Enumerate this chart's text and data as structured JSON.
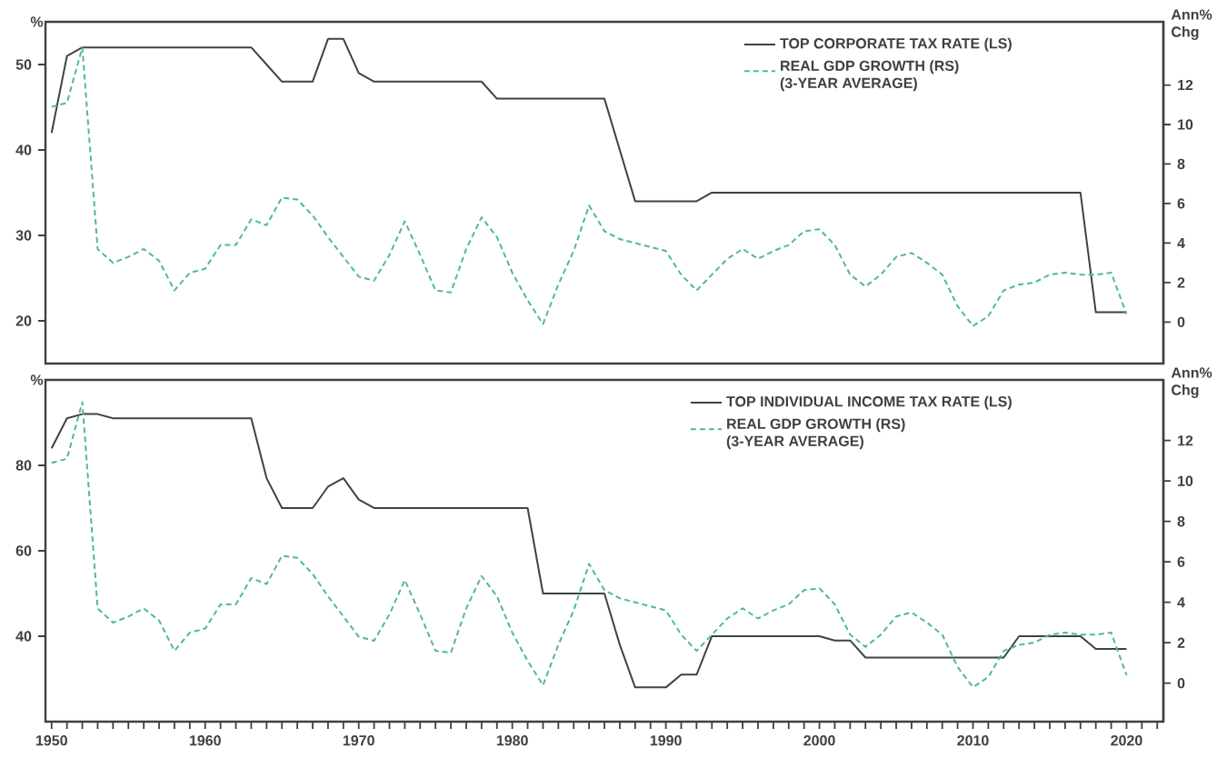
{
  "chart_data": [
    {
      "type": "line",
      "ylabel": "%",
      "y2label": "Ann% Chg",
      "legend": "top right",
      "tick_labels": "y",
      "x": [
        1950,
        1951,
        1952,
        1953,
        1954,
        1955,
        1956,
        1957,
        1958,
        1959,
        1960,
        1961,
        1962,
        1963,
        1964,
        1965,
        1966,
        1967,
        1968,
        1969,
        1970,
        1971,
        1972,
        1973,
        1974,
        1975,
        1976,
        1977,
        1978,
        1979,
        1980,
        1981,
        1982,
        1983,
        1984,
        1985,
        1986,
        1987,
        1988,
        1989,
        1990,
        1991,
        1992,
        1993,
        1994,
        1995,
        1996,
        1997,
        1998,
        1999,
        2000,
        2001,
        2002,
        2003,
        2004,
        2005,
        2006,
        2007,
        2008,
        2009,
        2010,
        2011,
        2012,
        2013,
        2014,
        2015,
        2016,
        2017,
        2018,
        2019,
        2020
      ],
      "xlim": [
        1949.6,
        2022.4
      ],
      "ylim": [
        15,
        55
      ],
      "yticks": [
        20,
        30,
        40,
        50
      ],
      "y2lim": [
        -2.1,
        15.2
      ],
      "y2ticks": [
        0,
        2,
        4,
        6,
        8,
        10,
        12
      ],
      "series": [
        {
          "name": "TOP CORPORATE TAX RATE (LS)",
          "color": "#3d4347",
          "line_style": "solid",
          "values": [
            42,
            51,
            52,
            52,
            52,
            52,
            52,
            52,
            52,
            52,
            52,
            52,
            52,
            52,
            50,
            48,
            48,
            48,
            53,
            53,
            49,
            48,
            48,
            48,
            48,
            48,
            48,
            48,
            48,
            46,
            46,
            46,
            46,
            46,
            46,
            46,
            46,
            40,
            34,
            34,
            34,
            34,
            34,
            35,
            35,
            35,
            35,
            35,
            35,
            35,
            35,
            35,
            35,
            35,
            35,
            35,
            35,
            35,
            35,
            35,
            35,
            35,
            35,
            35,
            35,
            35,
            35,
            35,
            21,
            21,
            21
          ]
        },
        {
          "name": "REAL GDP GROWTH (RS) (3-YEAR AVERAGE)",
          "color": "#4fb89b",
          "line_style": "dashed",
          "axis": "y2",
          "values": [
            10.9,
            11.1,
            13.9,
            3.7,
            3.0,
            3.3,
            3.7,
            3.1,
            1.6,
            2.5,
            2.7,
            3.9,
            3.9,
            5.2,
            4.9,
            6.3,
            6.2,
            5.4,
            4.3,
            3.3,
            2.3,
            2.1,
            3.4,
            5.1,
            3.4,
            1.6,
            1.5,
            3.7,
            5.3,
            4.3,
            2.5,
            1.1,
            -0.1,
            1.9,
            3.6,
            5.9,
            4.6,
            4.2,
            4.0,
            3.8,
            3.6,
            2.4,
            1.6,
            2.4,
            3.2,
            3.7,
            3.2,
            3.6,
            3.9,
            4.6,
            4.7,
            3.9,
            2.4,
            1.8,
            2.4,
            3.3,
            3.5,
            3.0,
            2.4,
            0.8,
            -0.2,
            0.3,
            1.6,
            1.9,
            2.0,
            2.4,
            2.5,
            2.4,
            2.4,
            2.5,
            0.4
          ]
        }
      ]
    },
    {
      "type": "line",
      "ylabel": "%",
      "y2label": "Ann% Chg",
      "legend": "top right",
      "x": [
        1950,
        1951,
        1952,
        1953,
        1954,
        1955,
        1956,
        1957,
        1958,
        1959,
        1960,
        1961,
        1962,
        1963,
        1964,
        1965,
        1966,
        1967,
        1968,
        1969,
        1970,
        1971,
        1972,
        1973,
        1974,
        1975,
        1976,
        1977,
        1978,
        1979,
        1980,
        1981,
        1982,
        1983,
        1984,
        1985,
        1986,
        1987,
        1988,
        1989,
        1990,
        1991,
        1992,
        1993,
        1994,
        1995,
        1996,
        1997,
        1998,
        1999,
        2000,
        2001,
        2002,
        2003,
        2004,
        2005,
        2006,
        2007,
        2008,
        2009,
        2010,
        2011,
        2012,
        2013,
        2014,
        2015,
        2016,
        2017,
        2018,
        2019,
        2020
      ],
      "xlim": [
        1949.6,
        2022.4
      ],
      "xticks": [
        1950,
        {
          "value": 1951,
          "label": null
        },
        {
          "value": 1952,
          "label": null
        },
        {
          "value": 1953,
          "label": null
        },
        {
          "value": 1954,
          "label": null
        },
        {
          "value": 1955,
          "label": null
        },
        {
          "value": 1956,
          "label": null
        },
        {
          "value": 1957,
          "label": null
        },
        {
          "value": 1958,
          "label": null
        },
        {
          "value": 1959,
          "label": null
        },
        1960,
        {
          "value": 1961,
          "label": null
        },
        {
          "value": 1962,
          "label": null
        },
        {
          "value": 1963,
          "label": null
        },
        {
          "value": 1964,
          "label": null
        },
        {
          "value": 1965,
          "label": null
        },
        {
          "value": 1966,
          "label": null
        },
        {
          "value": 1967,
          "label": null
        },
        {
          "value": 1968,
          "label": null
        },
        {
          "value": 1969,
          "label": null
        },
        1970,
        {
          "value": 1971,
          "label": null
        },
        {
          "value": 1972,
          "label": null
        },
        {
          "value": 1973,
          "label": null
        },
        {
          "value": 1974,
          "label": null
        },
        {
          "value": 1975,
          "label": null
        },
        {
          "value": 1976,
          "label": null
        },
        {
          "value": 1977,
          "label": null
        },
        {
          "value": 1978,
          "label": null
        },
        {
          "value": 1979,
          "label": null
        },
        1980,
        {
          "value": 1981,
          "label": null
        },
        {
          "value": 1982,
          "label": null
        },
        {
          "value": 1983,
          "label": null
        },
        {
          "value": 1984,
          "label": null
        },
        {
          "value": 1985,
          "label": null
        },
        {
          "value": 1986,
          "label": null
        },
        {
          "value": 1987,
          "label": null
        },
        {
          "value": 1988,
          "label": null
        },
        {
          "value": 1989,
          "label": null
        },
        1990,
        {
          "value": 1991,
          "label": null
        },
        {
          "value": 1992,
          "label": null
        },
        {
          "value": 1993,
          "label": null
        },
        {
          "value": 1994,
          "label": null
        },
        {
          "value": 1995,
          "label": null
        },
        {
          "value": 1996,
          "label": null
        },
        {
          "value": 1997,
          "label": null
        },
        {
          "value": 1998,
          "label": null
        },
        {
          "value": 1999,
          "label": null
        },
        2000,
        {
          "value": 2001,
          "label": null
        },
        {
          "value": 2002,
          "label": null
        },
        {
          "value": 2003,
          "label": null
        },
        {
          "value": 2004,
          "label": null
        },
        {
          "value": 2005,
          "label": null
        },
        {
          "value": 2006,
          "label": null
        },
        {
          "value": 2007,
          "label": null
        },
        {
          "value": 2008,
          "label": null
        },
        {
          "value": 2009,
          "label": null
        },
        2010,
        {
          "value": 2011,
          "label": null
        },
        {
          "value": 2012,
          "label": null
        },
        {
          "value": 2013,
          "label": null
        },
        {
          "value": 2014,
          "label": null
        },
        {
          "value": 2015,
          "label": null
        },
        {
          "value": 2016,
          "label": null
        },
        {
          "value": 2017,
          "label": null
        },
        {
          "value": 2018,
          "label": null
        },
        {
          "value": 2019,
          "label": null
        },
        2020,
        {
          "value": 2021,
          "label": null
        },
        {
          "value": 2022,
          "label": null
        }
      ],
      "ylim": [
        20,
        100
      ],
      "yticks": [
        40,
        60,
        80
      ],
      "y2lim": [
        -1.9,
        15
      ],
      "y2ticks": [
        0,
        2,
        4,
        6,
        8,
        10,
        12
      ],
      "series": [
        {
          "name": "TOP INDIVIDUAL INCOME TAX RATE (LS)",
          "color": "#3d4347",
          "line_style": "solid",
          "values": [
            84,
            91,
            92,
            92,
            91,
            91,
            91,
            91,
            91,
            91,
            91,
            91,
            91,
            91,
            77,
            70,
            70,
            70,
            75,
            77,
            72,
            70,
            70,
            70,
            70,
            70,
            70,
            70,
            70,
            70,
            70,
            70,
            50,
            50,
            50,
            50,
            50,
            38,
            28,
            28,
            28,
            31,
            31,
            40,
            40,
            40,
            40,
            40,
            40,
            40,
            40,
            39,
            39,
            35,
            35,
            35,
            35,
            35,
            35,
            35,
            35,
            35,
            35,
            40,
            40,
            40,
            40,
            40,
            37,
            37,
            37
          ]
        },
        {
          "name": "REAL GDP GROWTH (RS) (3-YEAR AVERAGE)",
          "color": "#4fb89b",
          "line_style": "dashed",
          "axis": "y2",
          "values": [
            10.9,
            11.1,
            13.9,
            3.7,
            3.0,
            3.3,
            3.7,
            3.1,
            1.6,
            2.5,
            2.7,
            3.9,
            3.9,
            5.2,
            4.9,
            6.3,
            6.2,
            5.4,
            4.3,
            3.3,
            2.3,
            2.1,
            3.4,
            5.1,
            3.4,
            1.6,
            1.5,
            3.7,
            5.3,
            4.3,
            2.5,
            1.1,
            -0.1,
            1.9,
            3.6,
            5.9,
            4.6,
            4.2,
            4.0,
            3.8,
            3.6,
            2.4,
            1.6,
            2.4,
            3.2,
            3.7,
            3.2,
            3.6,
            3.9,
            4.6,
            4.7,
            3.9,
            2.4,
            1.8,
            2.4,
            3.3,
            3.5,
            3.0,
            2.4,
            0.8,
            -0.2,
            0.3,
            1.6,
            1.9,
            2.0,
            2.4,
            2.5,
            2.4,
            2.4,
            2.5,
            0.4
          ]
        }
      ]
    }
  ]
}
